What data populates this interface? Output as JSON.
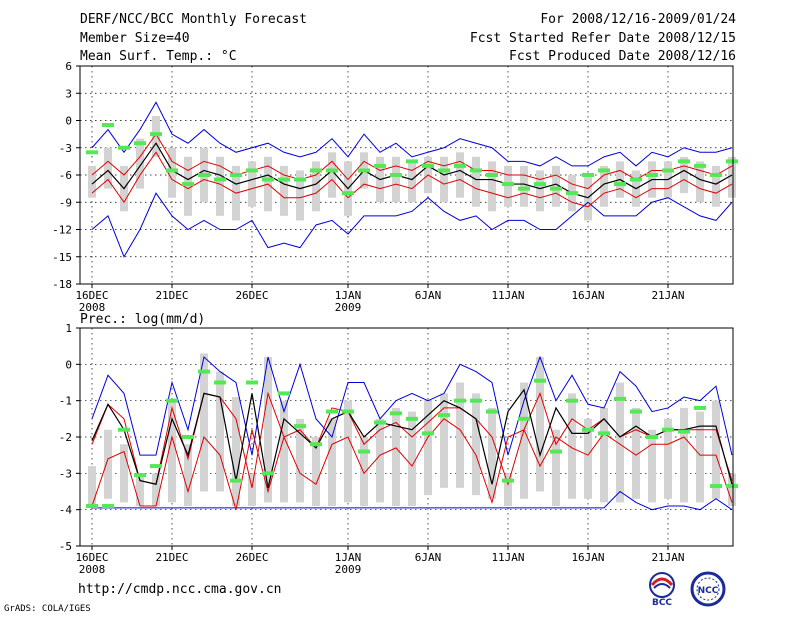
{
  "header": {
    "title": "DERF/NCC/BCC Monthly Forecast",
    "member_size": "Member Size=40",
    "variable_top": "Mean Surf. Temp.: °C",
    "forecast_range": "For 2008/12/16-2009/01/24",
    "fcst_started": "Fcst Started Refer Date 2008/12/15",
    "fcst_produced": "Fcst Produced Date 2008/12/16"
  },
  "footer": {
    "url": "http://cmdp.ncc.cma.gov.cn",
    "grads": "GrADS: COLA/IGES"
  },
  "logos": {
    "bcc_label": "BCC",
    "ncc_label": "NCC"
  },
  "colors": {
    "box": "#d3d3d3",
    "observed": "#55e855",
    "mean": "#000000",
    "quantile": "#e00000",
    "extreme": "#0000dd",
    "grid": "#000000",
    "logo_blue": "#1a2a9a"
  },
  "chart_data": [
    {
      "type": "line",
      "title": "Mean Surf. Temp.: °C",
      "ylim": [
        -18,
        6
      ],
      "yticks": [
        6,
        3,
        0,
        -3,
        -6,
        -9,
        -12,
        -15,
        -18
      ],
      "xticks": [
        {
          "day": 0,
          "label": "16DEC",
          "sub": "2008"
        },
        {
          "day": 5,
          "label": "21DEC",
          "sub": ""
        },
        {
          "day": 10,
          "label": "26DEC",
          "sub": ""
        },
        {
          "day": 16,
          "label": "1JAN",
          "sub": "2009"
        },
        {
          "day": 21,
          "label": "6JAN",
          "sub": ""
        },
        {
          "day": 26,
          "label": "11JAN",
          "sub": ""
        },
        {
          "day": 31,
          "label": "16JAN",
          "sub": ""
        },
        {
          "day": 36,
          "label": "21JAN",
          "sub": ""
        }
      ],
      "series": [
        {
          "name": "max",
          "values": [
            -3.0,
            -1.0,
            -3.5,
            -1.0,
            2.0,
            -1.5,
            -2.5,
            -1.0,
            -2.5,
            -3.5,
            -3.0,
            -2.5,
            -3.5,
            -4.0,
            -3.5,
            -2.0,
            -4.0,
            -1.5,
            -3.5,
            -2.5,
            -4.0,
            -3.5,
            -3.0,
            -2.0,
            -2.5,
            -3.0,
            -4.5,
            -4.5,
            -5.0,
            -4.0,
            -5.0,
            -5.0,
            -4.0,
            -3.5,
            -5.0,
            -3.5,
            -4.0,
            -3.0,
            -3.5,
            -3.5,
            -3.0
          ]
        },
        {
          "name": "upper",
          "values": [
            -6.0,
            -4.5,
            -6.0,
            -4.0,
            -1.5,
            -4.5,
            -5.5,
            -4.5,
            -5.0,
            -6.0,
            -5.5,
            -5.0,
            -6.0,
            -6.5,
            -6.0,
            -4.5,
            -6.5,
            -4.5,
            -5.5,
            -5.0,
            -5.5,
            -4.5,
            -5.0,
            -4.5,
            -5.5,
            -5.5,
            -6.0,
            -6.0,
            -6.5,
            -6.0,
            -7.0,
            -7.5,
            -6.0,
            -5.5,
            -6.5,
            -5.5,
            -5.5,
            -5.0,
            -5.5,
            -6.0,
            -5.0
          ]
        },
        {
          "name": "mean",
          "values": [
            -7.0,
            -5.5,
            -7.5,
            -5.0,
            -2.5,
            -5.5,
            -6.5,
            -5.5,
            -6.0,
            -7.0,
            -6.5,
            -6.0,
            -7.0,
            -7.5,
            -7.0,
            -5.5,
            -7.5,
            -5.5,
            -6.5,
            -6.0,
            -6.5,
            -5.0,
            -6.0,
            -5.5,
            -6.5,
            -6.5,
            -7.0,
            -7.0,
            -7.5,
            -7.0,
            -8.0,
            -8.5,
            -7.0,
            -6.5,
            -7.5,
            -6.5,
            -6.5,
            -5.5,
            -6.5,
            -7.0,
            -6.0
          ]
        },
        {
          "name": "lower",
          "values": [
            -8.0,
            -6.5,
            -9.0,
            -6.0,
            -3.5,
            -6.5,
            -7.5,
            -6.5,
            -7.0,
            -8.0,
            -7.5,
            -7.0,
            -8.5,
            -8.5,
            -8.0,
            -6.5,
            -8.5,
            -7.0,
            -7.5,
            -7.0,
            -7.5,
            -6.0,
            -7.0,
            -6.5,
            -7.5,
            -8.0,
            -8.5,
            -8.0,
            -8.5,
            -8.0,
            -9.0,
            -9.5,
            -8.0,
            -7.5,
            -8.5,
            -7.5,
            -7.5,
            -6.5,
            -7.5,
            -8.0,
            -7.0
          ]
        },
        {
          "name": "min",
          "values": [
            -12.0,
            -10.5,
            -15.0,
            -12.0,
            -8.0,
            -10.5,
            -12.0,
            -11.0,
            -12.0,
            -12.0,
            -11.0,
            -14.0,
            -13.5,
            -14.0,
            -11.5,
            -11.0,
            -12.5,
            -10.5,
            -10.5,
            -10.5,
            -10.0,
            -8.5,
            -10.0,
            -11.0,
            -10.5,
            -12.0,
            -11.0,
            -11.0,
            -12.0,
            -12.0,
            -10.5,
            -9.0,
            -10.5,
            -10.5,
            -10.5,
            -9.0,
            -8.5,
            -9.5,
            -10.5,
            -11.0,
            -9.0
          ]
        },
        {
          "name": "box_top",
          "values": [
            -5.0,
            -3.0,
            -5.0,
            -2.0,
            0.5,
            -3.0,
            -4.0,
            -3.0,
            -4.0,
            -5.0,
            -4.5,
            -4.0,
            -5.0,
            -5.5,
            -4.5,
            -3.5,
            -4.5,
            -3.5,
            -4.0,
            -4.0,
            -4.5,
            -4.0,
            -4.0,
            -3.5,
            -4.0,
            -4.5,
            -5.0,
            -5.0,
            -5.5,
            -5.0,
            -6.0,
            -6.0,
            -5.0,
            -4.5,
            -5.5,
            -4.5,
            -4.5,
            -4.0,
            -4.5,
            -5.0,
            -4.0
          ]
        },
        {
          "name": "box_bottom",
          "values": [
            -8.5,
            -7.5,
            -10.0,
            -7.5,
            -4.0,
            -8.5,
            -10.5,
            -9.0,
            -10.5,
            -11.0,
            -9.5,
            -10.0,
            -10.5,
            -11.0,
            -10.0,
            -8.5,
            -10.5,
            -7.5,
            -9.0,
            -9.0,
            -9.0,
            -8.0,
            -9.0,
            -8.5,
            -9.5,
            -10.0,
            -9.5,
            -9.5,
            -10.0,
            -9.5,
            -10.0,
            -11.0,
            -9.5,
            -8.5,
            -9.5,
            -8.5,
            -8.5,
            -8.0,
            -9.0,
            -9.5,
            -8.5
          ]
        },
        {
          "name": "observed",
          "values": [
            -3.5,
            -0.5,
            -3.0,
            -2.5,
            -1.5,
            -5.5,
            -7.0,
            -6.0,
            -6.5,
            -6.0,
            -5.5,
            -6.5,
            -6.5,
            -6.5,
            -5.5,
            -5.5,
            -8.0,
            -5.5,
            -5.0,
            -6.0,
            -4.5,
            -5.0,
            -5.5,
            -5.0,
            -5.5,
            -6.0,
            -7.0,
            -7.5,
            -7.0,
            -7.5,
            -8.0,
            -6.0,
            -5.5,
            -7.0,
            -6.5,
            -6.0,
            -5.5,
            -4.5,
            -5.0,
            -6.0,
            -4.5
          ]
        }
      ]
    },
    {
      "type": "line",
      "title": "Prec.: log(mm/d)",
      "ylim": [
        -5,
        1
      ],
      "yticks": [
        1,
        0,
        -1,
        -2,
        -3,
        -4,
        -5
      ],
      "xticks": [
        {
          "day": 0,
          "label": "16DEC",
          "sub": "2008"
        },
        {
          "day": 5,
          "label": "21DEC",
          "sub": ""
        },
        {
          "day": 10,
          "label": "26DEC",
          "sub": ""
        },
        {
          "day": 16,
          "label": "1JAN",
          "sub": "2009"
        },
        {
          "day": 21,
          "label": "6JAN",
          "sub": ""
        },
        {
          "day": 26,
          "label": "11JAN",
          "sub": ""
        },
        {
          "day": 31,
          "label": "16JAN",
          "sub": ""
        },
        {
          "day": 36,
          "label": "21JAN",
          "sub": ""
        }
      ],
      "series": [
        {
          "name": "max",
          "values": [
            -1.5,
            -0.3,
            -0.8,
            -2.5,
            -2.5,
            -0.5,
            -1.8,
            0.2,
            -0.2,
            -0.5,
            -2.5,
            0.2,
            -1.3,
            -0.0,
            -1.5,
            -2.0,
            -0.5,
            -0.5,
            -1.5,
            -1.0,
            -0.8,
            -1.0,
            -0.8,
            0.0,
            -0.2,
            -0.5,
            -2.5,
            -1.0,
            0.2,
            -1.0,
            -0.3,
            -1.1,
            -1.2,
            -0.2,
            -0.6,
            -1.3,
            -1.2,
            -0.9,
            -1.0,
            -0.6,
            -2.5
          ]
        },
        {
          "name": "upper",
          "values": [
            -2.2,
            -1.1,
            -1.5,
            -3.2,
            -3.3,
            -1.2,
            -2.6,
            -0.8,
            -0.9,
            -1.5,
            -3.4,
            -0.8,
            -2.0,
            -1.8,
            -2.3,
            -1.2,
            -1.3,
            -2.2,
            -1.8,
            -1.6,
            -2.0,
            -1.6,
            -1.2,
            -1.2,
            -1.5,
            -2.0,
            -3.3,
            -1.8,
            -0.8,
            -2.2,
            -1.5,
            -1.8,
            -1.5,
            -2.0,
            -1.8,
            -2.0,
            -1.8,
            -1.8,
            -1.8,
            -1.8,
            -3.2
          ]
        },
        {
          "name": "lower",
          "values": [
            -3.9,
            -2.6,
            -2.4,
            -3.9,
            -3.9,
            -2.0,
            -3.5,
            -2.0,
            -2.5,
            -4.0,
            -1.8,
            -3.5,
            -2.0,
            -3.0,
            -3.3,
            -2.2,
            -2.0,
            -3.0,
            -2.5,
            -2.3,
            -2.8,
            -2.0,
            -1.5,
            -1.8,
            -2.5,
            -3.8,
            -2.0,
            -1.8,
            -2.8,
            -2.0,
            -2.3,
            -2.5,
            -1.9,
            -2.2,
            -2.5,
            -2.2,
            -2.2,
            -2.0,
            -2.5,
            -2.5,
            -3.8
          ]
        },
        {
          "name": "min",
          "values": [
            -3.95,
            -3.95,
            -3.95,
            -3.95,
            -3.95,
            -3.95,
            -3.95,
            -3.95,
            -3.95,
            -3.95,
            -3.95,
            -3.95,
            -3.95,
            -3.95,
            -3.95,
            -3.95,
            -3.95,
            -3.95,
            -3.95,
            -3.95,
            -3.95,
            -3.95,
            -3.95,
            -3.95,
            -3.95,
            -3.95,
            -3.95,
            -3.95,
            -3.95,
            -3.95,
            -3.95,
            -3.95,
            -3.95,
            -3.5,
            -3.8,
            -4.0,
            -3.9,
            -3.9,
            -4.0,
            -3.7,
            -4.0
          ]
        },
        {
          "name": "box_top",
          "values": [
            -2.8,
            -1.8,
            -2.2,
            -3.0,
            -3.0,
            -1.0,
            -2.2,
            0.3,
            -0.2,
            -0.9,
            -3.0,
            0.2,
            -1.0,
            -1.5,
            -2.0,
            -1.5,
            -1.0,
            -2.0,
            -1.5,
            -1.2,
            -1.3,
            -1.0,
            -0.8,
            -0.5,
            -0.8,
            -1.2,
            -3.0,
            -0.5,
            0.2,
            -1.8,
            -0.8,
            -1.5,
            -1.2,
            -0.5,
            -1.2,
            -1.8,
            -1.5,
            -1.2,
            -1.3,
            -1.0,
            -3.0
          ]
        },
        {
          "name": "box_bottom",
          "values": [
            -3.9,
            -3.7,
            -3.8,
            -3.9,
            -3.9,
            -3.8,
            -3.9,
            -3.5,
            -3.5,
            -3.9,
            -3.9,
            -3.8,
            -3.8,
            -3.8,
            -3.9,
            -3.9,
            -3.8,
            -3.9,
            -3.8,
            -3.9,
            -3.9,
            -3.6,
            -3.4,
            -3.4,
            -3.6,
            -3.7,
            -3.9,
            -3.7,
            -3.5,
            -3.9,
            -3.7,
            -3.7,
            -3.8,
            -3.8,
            -3.7,
            -3.8,
            -3.7,
            -3.8,
            -3.8,
            -3.7,
            -3.9
          ]
        },
        {
          "name": "mean_cont",
          "values": [
            -2.1,
            -1.1,
            -1.8,
            -3.2,
            -3.3,
            -1.5,
            -2.5,
            -0.8,
            -0.9,
            -3.2,
            -0.8,
            -3.4,
            -1.5,
            -1.9,
            -2.3,
            -1.5,
            -1.3,
            -2.0,
            -1.6,
            -1.7,
            -1.8,
            -1.4,
            -1.0,
            -1.2,
            -1.5,
            -3.3,
            -1.3,
            -0.7,
            -2.5,
            -1.2,
            -1.9,
            -1.9,
            -1.5,
            -2.0,
            -1.7,
            -2.0,
            -1.8,
            -1.8,
            -1.7,
            -1.7,
            -3.3
          ]
        },
        {
          "name": "observed",
          "values": [
            -3.9,
            -3.9,
            -1.8,
            -3.05,
            -2.8,
            -1.0,
            -2.0,
            -0.2,
            -0.5,
            -3.2,
            -0.5,
            -3.0,
            -0.8,
            -1.7,
            -2.2,
            -1.3,
            -1.3,
            -2.4,
            -1.6,
            -1.35,
            -1.5,
            -1.9,
            -1.4,
            -1.0,
            -1.0,
            -1.3,
            -3.2,
            -1.5,
            -0.45,
            -2.4,
            -1.0,
            -1.8,
            -1.9,
            -0.95,
            -1.3,
            -2.0,
            -1.8,
            -1.85,
            -1.2,
            -3.35,
            -3.35
          ]
        }
      ]
    }
  ]
}
